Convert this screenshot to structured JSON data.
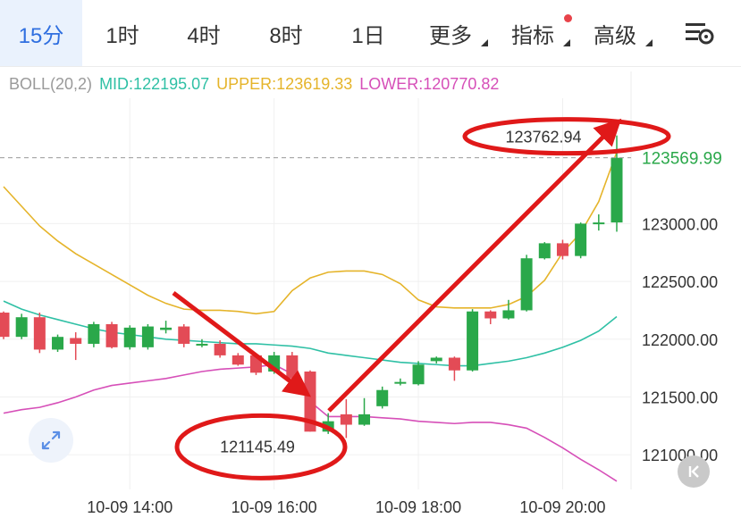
{
  "tabs": [
    {
      "label": "15分",
      "active": true
    },
    {
      "label": "1时"
    },
    {
      "label": "4时"
    },
    {
      "label": "8时"
    },
    {
      "label": "1日"
    },
    {
      "label": "更多",
      "dropdown": true
    },
    {
      "label": "指标",
      "dropdown": true,
      "dot": true
    },
    {
      "label": "高级",
      "dropdown": true
    }
  ],
  "settings_icon": "chart-settings-icon",
  "legend": {
    "name": "BOLL(20,2)",
    "mid_label": "MID:122195.07",
    "upper_label": "UPPER:123619.33",
    "lower_label": "LOWER:120770.82",
    "colors": {
      "name": "#9a9a9a",
      "mid": "#2fc0a5",
      "upper": "#e5b42a",
      "lower": "#d64fb8"
    }
  },
  "chart_data": {
    "type": "candlestick",
    "y_ticks": [
      123000,
      122500,
      122000,
      121500,
      121000
    ],
    "y_tick_labels": [
      "123000.00",
      "122500.00",
      "122000.00",
      "121500.00",
      "121000.00"
    ],
    "ylim": [
      120700,
      124000
    ],
    "x_tick_labels": [
      "10-09 14:00",
      "10-09 16:00",
      "10-09 18:00",
      "10-09 20:00"
    ],
    "x_tick_index": [
      7,
      15,
      23,
      31
    ],
    "current_price": 123569.99,
    "current_price_label": "123569.99",
    "annotations": {
      "high_label": "123762.94",
      "high_value": 123762.94,
      "low_label": "121145.49",
      "low_value": 121145.49
    },
    "up_color": "#2aa84a",
    "down_color": "#e34b56",
    "candles": [
      {
        "o": 122230,
        "h": 122240,
        "l": 122000,
        "c": 122020
      },
      {
        "o": 122020,
        "h": 122220,
        "l": 122000,
        "c": 122190
      },
      {
        "o": 122190,
        "h": 122230,
        "l": 121880,
        "c": 121910
      },
      {
        "o": 121910,
        "h": 122040,
        "l": 121890,
        "c": 122020
      },
      {
        "o": 122010,
        "h": 122060,
        "l": 121820,
        "c": 121960
      },
      {
        "o": 121960,
        "h": 122150,
        "l": 121930,
        "c": 122130
      },
      {
        "o": 122130,
        "h": 122150,
        "l": 121920,
        "c": 121930
      },
      {
        "o": 121930,
        "h": 122120,
        "l": 121910,
        "c": 122100
      },
      {
        "o": 121930,
        "h": 122130,
        "l": 121910,
        "c": 122110
      },
      {
        "o": 122080,
        "h": 122160,
        "l": 122050,
        "c": 122100
      },
      {
        "o": 122110,
        "h": 122130,
        "l": 121930,
        "c": 121960
      },
      {
        "o": 121960,
        "h": 122000,
        "l": 121930,
        "c": 121960
      },
      {
        "o": 121960,
        "h": 121990,
        "l": 121840,
        "c": 121860
      },
      {
        "o": 121860,
        "h": 121880,
        "l": 121770,
        "c": 121780
      },
      {
        "o": 121860,
        "h": 121860,
        "l": 121690,
        "c": 121710
      },
      {
        "o": 121720,
        "h": 121890,
        "l": 121700,
        "c": 121860
      },
      {
        "o": 121860,
        "h": 121890,
        "l": 121650,
        "c": 121660
      },
      {
        "o": 121720,
        "h": 121730,
        "l": 121200,
        "c": 121200
      },
      {
        "o": 121200,
        "h": 121360,
        "l": 121180,
        "c": 121290
      },
      {
        "o": 121350,
        "h": 121480,
        "l": 121145,
        "c": 121260
      },
      {
        "o": 121260,
        "h": 121490,
        "l": 121250,
        "c": 121350
      },
      {
        "o": 121420,
        "h": 121590,
        "l": 121400,
        "c": 121560
      },
      {
        "o": 121620,
        "h": 121660,
        "l": 121600,
        "c": 121630
      },
      {
        "o": 121610,
        "h": 121810,
        "l": 121600,
        "c": 121780
      },
      {
        "o": 121810,
        "h": 121850,
        "l": 121790,
        "c": 121840
      },
      {
        "o": 121840,
        "h": 121850,
        "l": 121640,
        "c": 121730
      },
      {
        "o": 121730,
        "h": 122260,
        "l": 121720,
        "c": 122240
      },
      {
        "o": 122240,
        "h": 122250,
        "l": 122130,
        "c": 122180
      },
      {
        "o": 122180,
        "h": 122340,
        "l": 122170,
        "c": 122250
      },
      {
        "o": 122250,
        "h": 122730,
        "l": 122240,
        "c": 122700
      },
      {
        "o": 122700,
        "h": 122840,
        "l": 122690,
        "c": 122830
      },
      {
        "o": 122830,
        "h": 122860,
        "l": 122690,
        "c": 122720
      },
      {
        "o": 122720,
        "h": 123010,
        "l": 122700,
        "c": 123000
      },
      {
        "o": 123000,
        "h": 123080,
        "l": 122940,
        "c": 123010
      },
      {
        "o": 123010,
        "h": 123762.94,
        "l": 122930,
        "c": 123569.99
      }
    ],
    "boll_upper": [
      123320,
      123150,
      122980,
      122850,
      122740,
      122650,
      122560,
      122470,
      122380,
      122310,
      122260,
      122250,
      122250,
      122240,
      122220,
      122240,
      122420,
      122530,
      122580,
      122590,
      122590,
      122560,
      122480,
      122340,
      122280,
      122270,
      122270,
      122270,
      122300,
      122370,
      122510,
      122750,
      122920,
      123190,
      123619.33
    ],
    "boll_mid": [
      122330,
      122260,
      122210,
      122170,
      122130,
      122090,
      122060,
      122040,
      122020,
      122000,
      121990,
      121980,
      121970,
      121960,
      121960,
      121950,
      121940,
      121920,
      121880,
      121860,
      121840,
      121820,
      121800,
      121790,
      121780,
      121770,
      121770,
      121790,
      121810,
      121840,
      121880,
      121930,
      121990,
      122070,
      122195.07
    ],
    "boll_lower": [
      121360,
      121390,
      121410,
      121450,
      121500,
      121560,
      121600,
      121620,
      121640,
      121660,
      121690,
      121720,
      121740,
      121750,
      121760,
      121780,
      121700,
      121460,
      121330,
      121330,
      121330,
      121320,
      121310,
      121290,
      121280,
      121270,
      121280,
      121280,
      121260,
      121230,
      121150,
      121060,
      120960,
      120870,
      120770.82
    ]
  }
}
